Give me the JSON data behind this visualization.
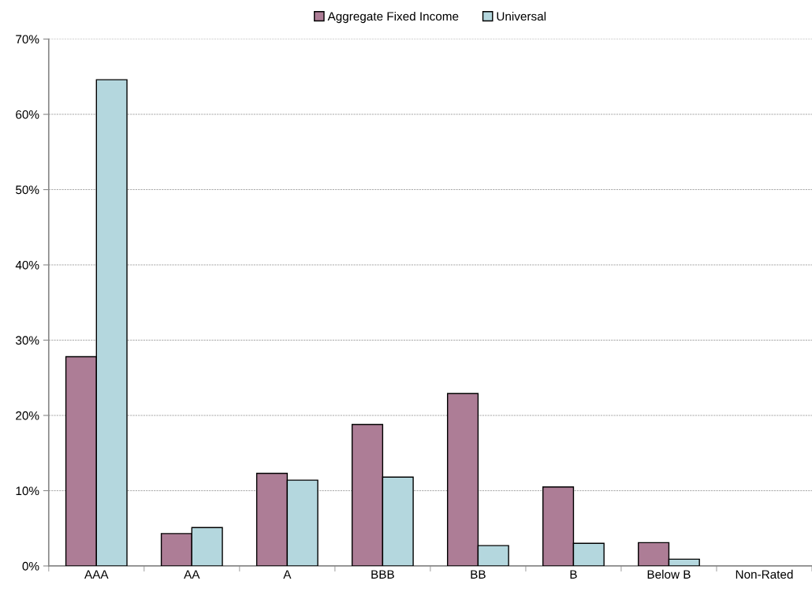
{
  "chart_data": {
    "type": "bar",
    "categories": [
      "AAA",
      "AA",
      "A",
      "BBB",
      "BB",
      "B",
      "Below B",
      "Non-Rated"
    ],
    "series": [
      {
        "name": "Aggregate Fixed Income",
        "color": "#ad7d96",
        "values": [
          27.8,
          4.3,
          12.3,
          18.8,
          22.9,
          10.5,
          3.1,
          0
        ]
      },
      {
        "name": "Universal",
        "color": "#b4d7de",
        "values": [
          64.6,
          5.1,
          11.4,
          11.8,
          2.7,
          3.0,
          0.9,
          0
        ]
      }
    ],
    "ylim": [
      0,
      70
    ],
    "yticks": [
      {
        "value": 0,
        "label": "0%"
      },
      {
        "value": 10,
        "label": "10%"
      },
      {
        "value": 20,
        "label": "20%"
      },
      {
        "value": 30,
        "label": "30%"
      },
      {
        "value": 40,
        "label": "40%"
      },
      {
        "value": 50,
        "label": "50%"
      },
      {
        "value": 60,
        "label": "60%"
      },
      {
        "value": 70,
        "label": "70%"
      }
    ],
    "grid": "y",
    "legend": "top"
  }
}
